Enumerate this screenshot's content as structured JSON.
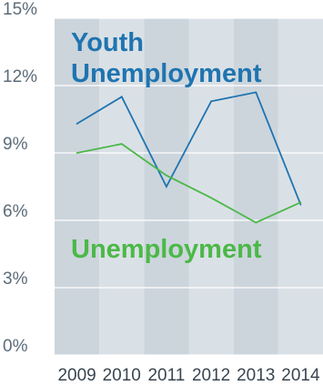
{
  "chart_data": {
    "type": "line",
    "x": [
      "2009",
      "2010",
      "2011",
      "2012",
      "2013",
      "2014"
    ],
    "ylim": [
      0,
      15
    ],
    "y_ticks": [
      {
        "value": 0,
        "label": "0%"
      },
      {
        "value": 3,
        "label": "3%"
      },
      {
        "value": 6,
        "label": "6%"
      },
      {
        "value": 9,
        "label": "9%"
      },
      {
        "value": 12,
        "label": "12%"
      },
      {
        "value": 15,
        "label": "15%"
      }
    ],
    "grid": true,
    "series": [
      {
        "name_lines": [
          "Youth",
          "Unemployment"
        ],
        "color": "#1f74b0",
        "values": [
          10.3,
          11.5,
          7.5,
          11.3,
          11.7,
          6.7
        ]
      },
      {
        "name_lines": [
          "Unemployment"
        ],
        "color": "#4cb848",
        "values": [
          9.0,
          9.4,
          8.0,
          7.0,
          5.9,
          6.8
        ]
      }
    ]
  },
  "colors": {
    "band_dark": "#ccd5dc",
    "band_light": "#dae1e6",
    "gridline": "#ffffff",
    "axis_text": "#5b6b78"
  }
}
